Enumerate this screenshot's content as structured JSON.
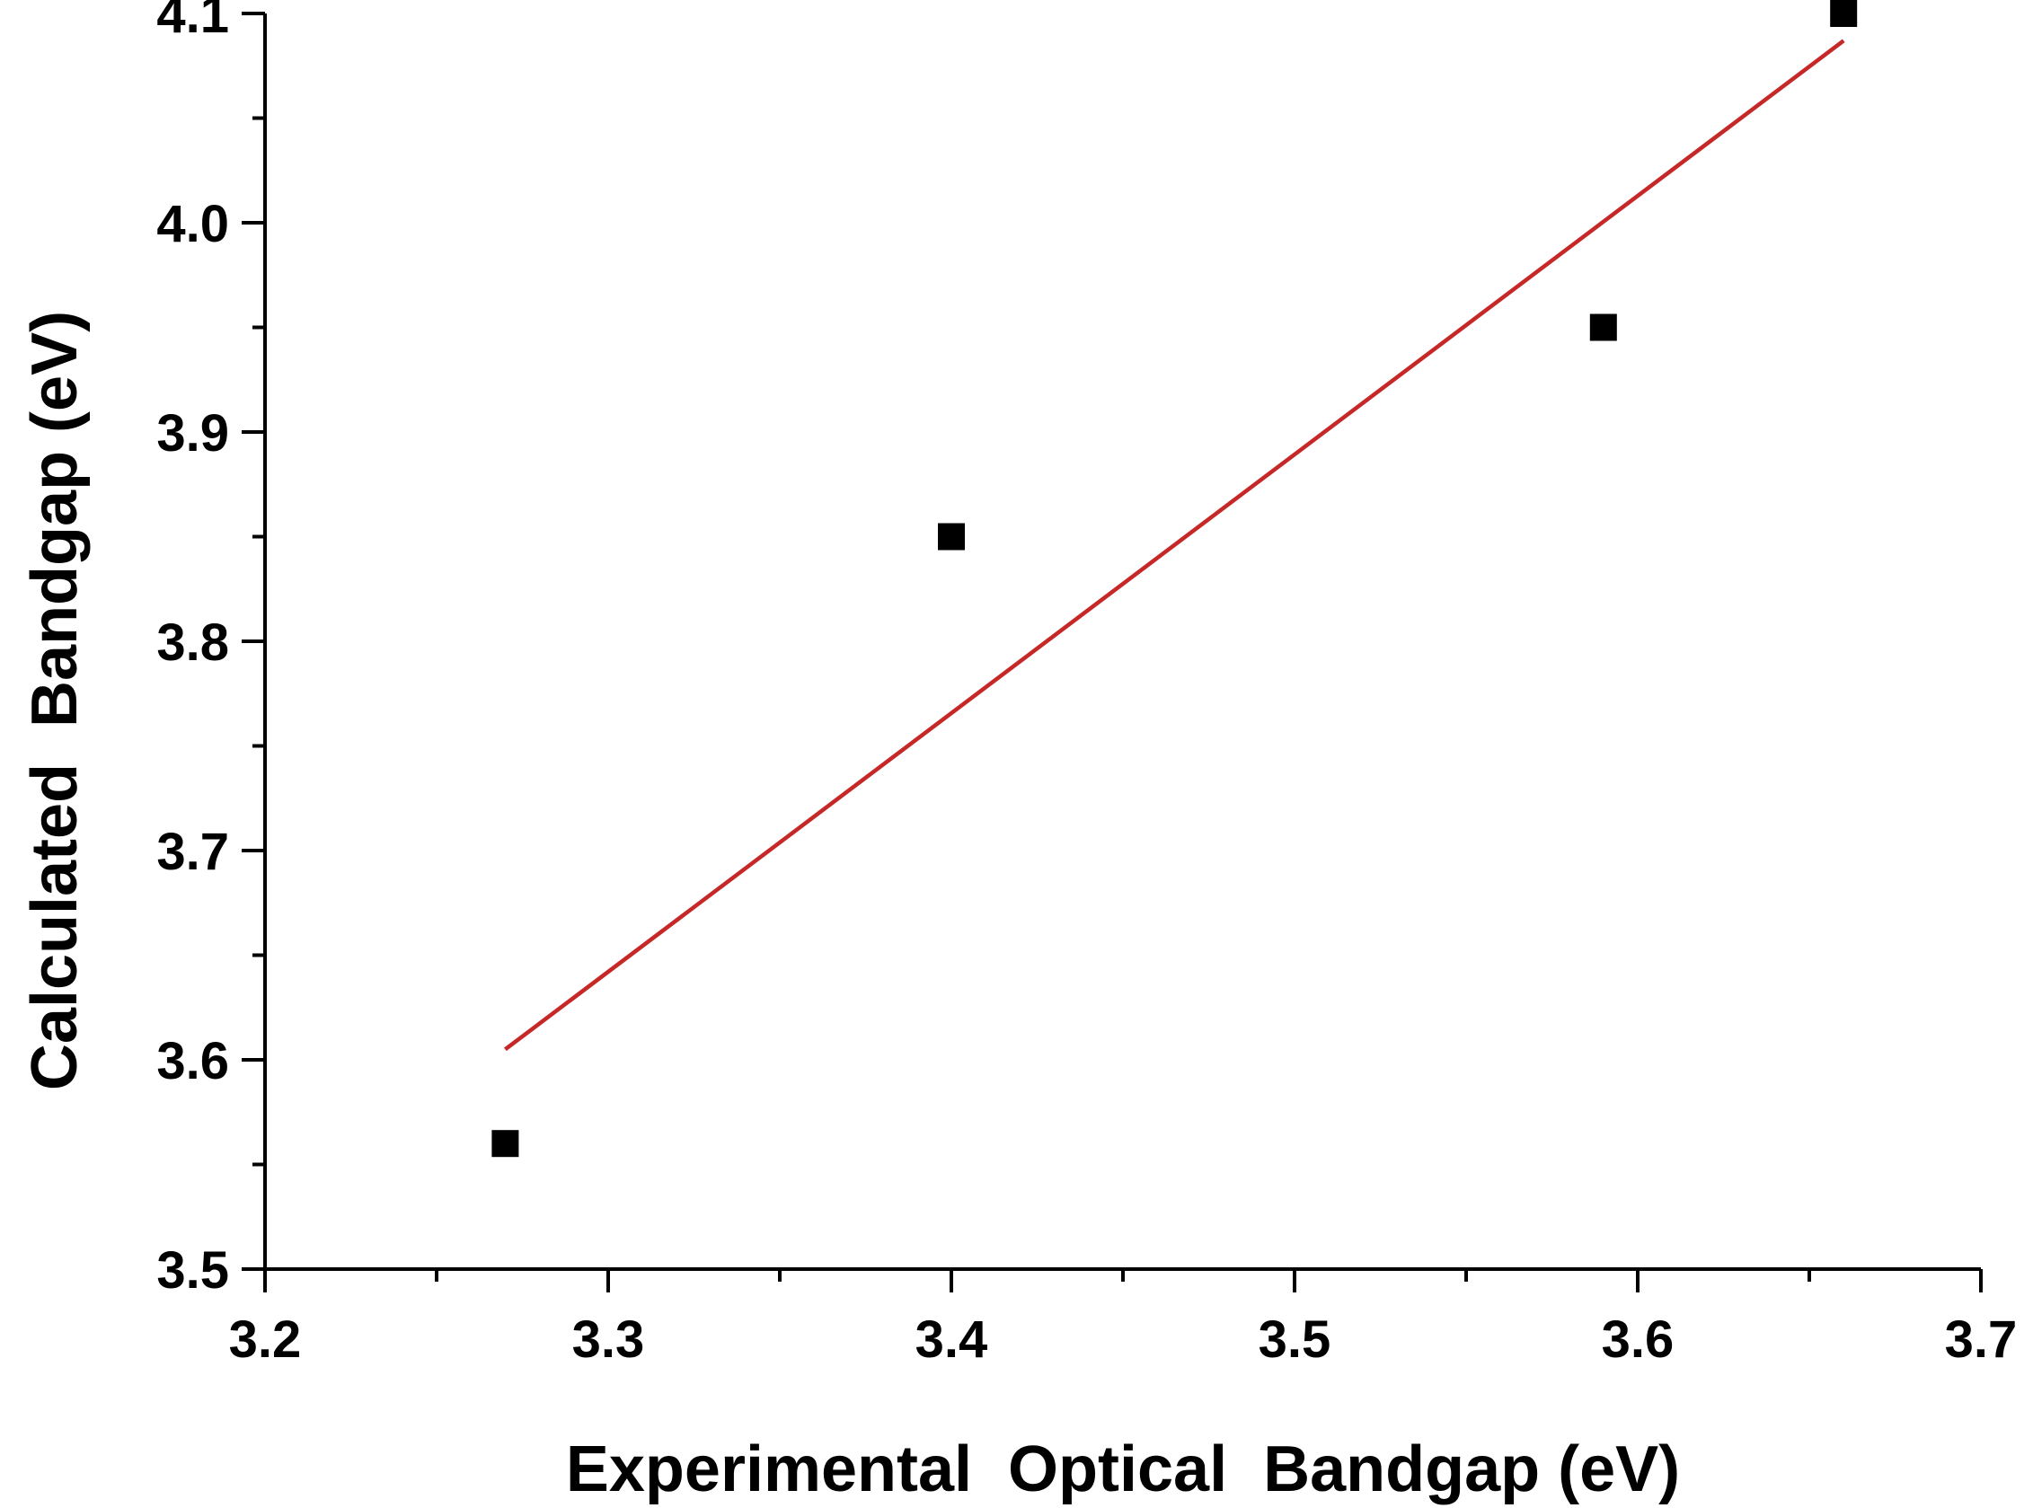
{
  "chart_data": {
    "type": "scatter",
    "title": "",
    "xlabel": "Experimental  Optical  Bandgap (eV)",
    "ylabel": "Calculated  Bandgap (eV)",
    "xlim": [
      3.2,
      3.7
    ],
    "ylim": [
      3.5,
      4.1
    ],
    "x_ticks": [
      3.2,
      3.3,
      3.4,
      3.5,
      3.6,
      3.7
    ],
    "x_tick_labels": [
      "3.2",
      "3.3",
      "3.4",
      "3.5",
      "3.6",
      "3.7"
    ],
    "y_ticks": [
      3.5,
      3.6,
      3.7,
      3.8,
      3.9,
      4.0,
      4.1
    ],
    "y_tick_labels": [
      "3.5",
      "3.6",
      "3.7",
      "3.8",
      "3.9",
      "4.0",
      "4.1"
    ],
    "grid": false,
    "legend": "none",
    "series": [
      {
        "marker": "square",
        "color": "#000000",
        "x": [
          3.27,
          3.4,
          3.59,
          3.66
        ],
        "y": [
          3.56,
          3.85,
          3.95,
          4.1
        ]
      }
    ],
    "fit_line": {
      "color": "#c62828",
      "x": [
        3.27,
        3.66
      ],
      "y": [
        3.605,
        4.087
      ]
    }
  }
}
